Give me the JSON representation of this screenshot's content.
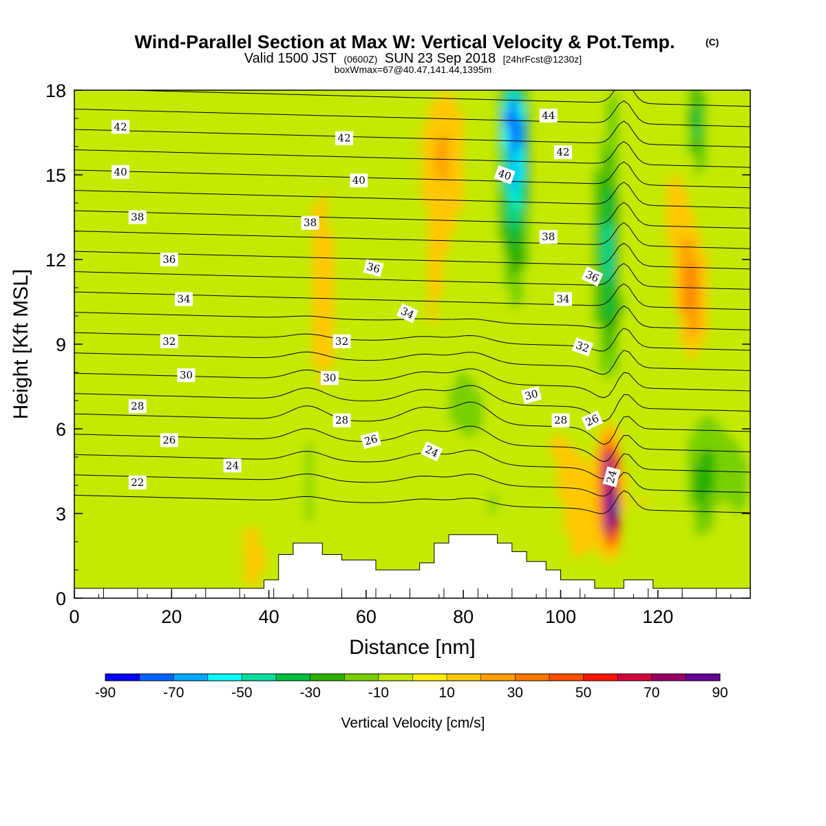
{
  "chart_data": {
    "type": "heatmap",
    "title": "Wind-Parallel Section at Max W: Vertical Velocity & Pot.Temp.",
    "title_mark": "(C)",
    "subtitle": {
      "valid": "Valid 1500 JST",
      "utc": "(0600Z)",
      "date": "SUN 23 Sep 2018",
      "fcst": "[24hrFcst@1230z]",
      "box": "boxWmax=67@40.47,141.44,1395m"
    },
    "xlabel": "Distance [nm]",
    "ylabel": "Height [Kft MSL]",
    "xlim": [
      0,
      139
    ],
    "ylim": [
      0,
      18
    ],
    "xticks": [
      0,
      20,
      40,
      60,
      80,
      100,
      120
    ],
    "yticks": [
      0,
      3,
      6,
      9,
      12,
      15,
      18
    ],
    "colorbar": {
      "label": "Vertical Velocity [cm/s]",
      "min": -90,
      "max": 90,
      "step": 10,
      "tick_labels": [
        "-90",
        "-70",
        "-50",
        "-30",
        "-10",
        "10",
        "30",
        "50",
        "70",
        "90"
      ],
      "colors": [
        "#0000ff",
        "#0064ff",
        "#00aaff",
        "#00ffff",
        "#00e0a0",
        "#00c040",
        "#28b000",
        "#78d000",
        "#c4ea00",
        "#ffee00",
        "#ffc800",
        "#ffa000",
        "#ff7800",
        "#ff5000",
        "#ff1400",
        "#d4003c",
        "#960064",
        "#640096"
      ]
    },
    "theta_contours": {
      "units": "pot. temp. (C)",
      "labels": [
        "22",
        "24",
        "24",
        "24",
        "26",
        "26",
        "26",
        "28",
        "28",
        "28",
        "30",
        "30",
        "30",
        "32",
        "32",
        "32",
        "34",
        "34",
        "34",
        "36",
        "36",
        "36",
        "38",
        "38",
        "38",
        "40",
        "40",
        "40",
        "42",
        "42",
        "42",
        "44"
      ]
    }
  }
}
